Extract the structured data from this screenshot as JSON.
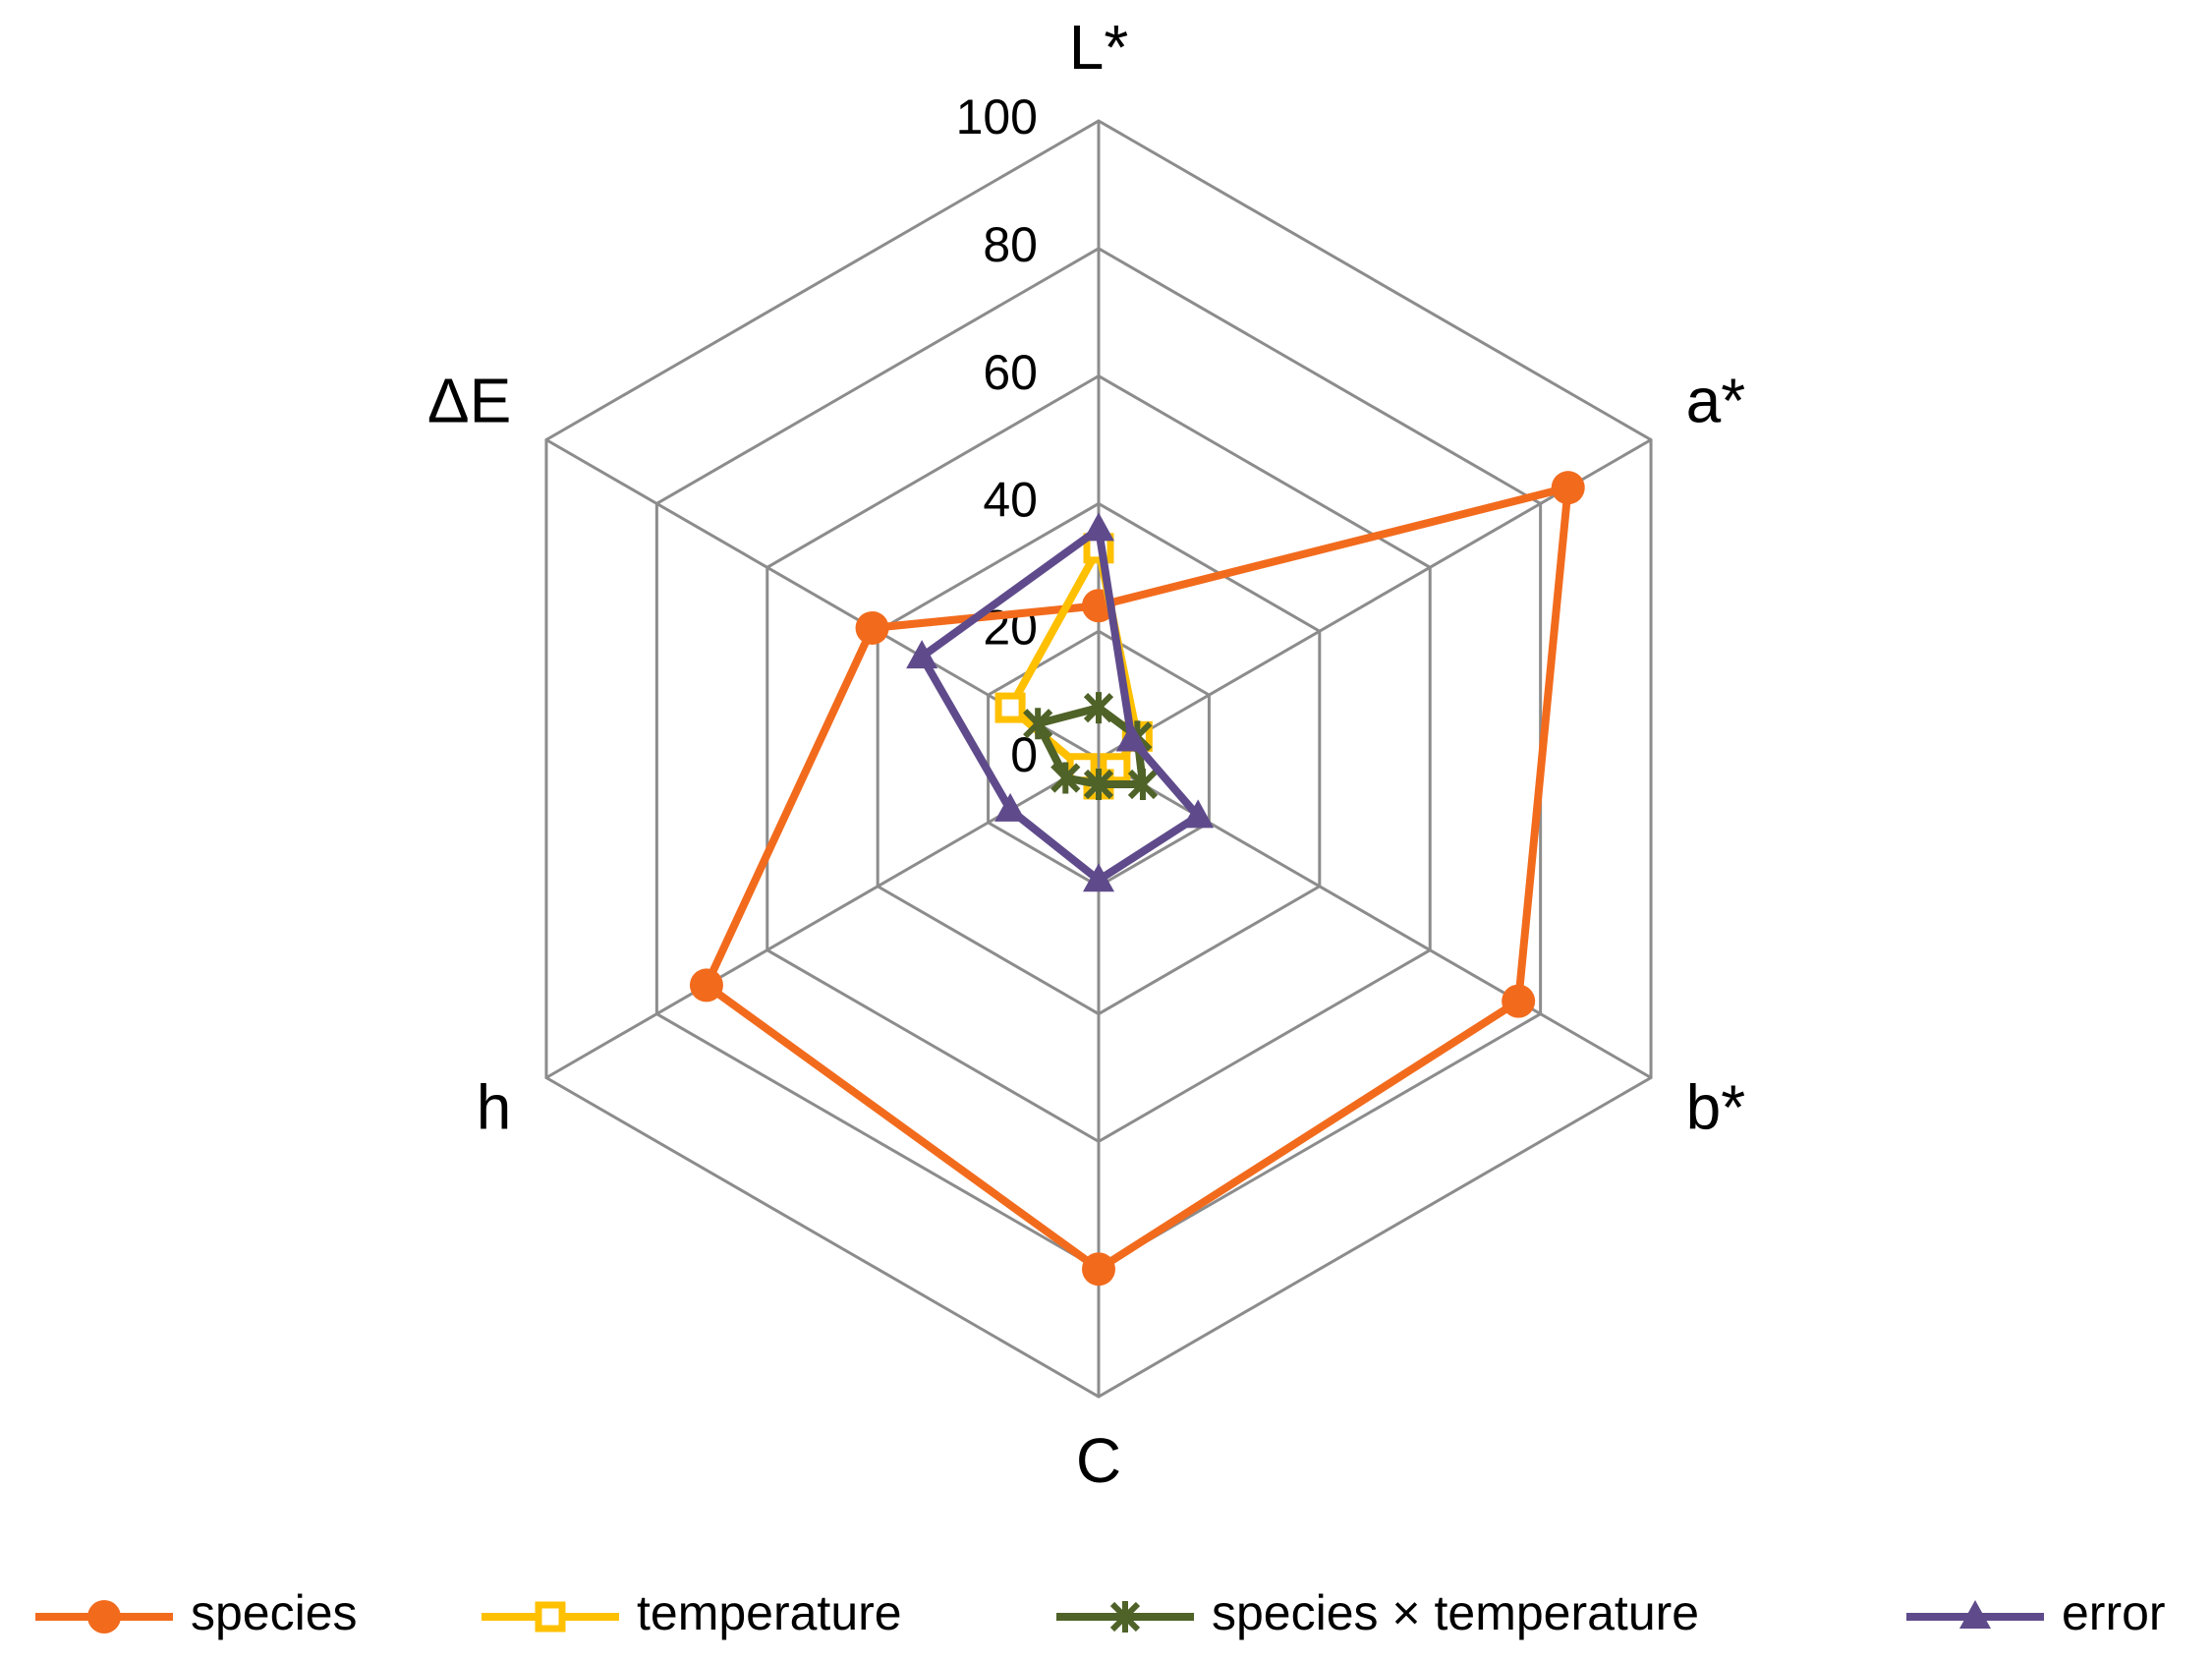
{
  "chart_data": {
    "type": "radar",
    "categories": [
      "L*",
      "a*",
      "b*",
      "C",
      "h",
      "ΔE"
    ],
    "rlim": [
      0,
      100
    ],
    "rticks": [
      0,
      20,
      40,
      60,
      80,
      100
    ],
    "series": [
      {
        "name": "species",
        "color": "#f26b1d",
        "marker": "circle",
        "values": [
          24,
          85,
          76,
          80,
          71,
          41
        ]
      },
      {
        "name": "temperature",
        "color": "#ffc000",
        "marker": "square",
        "values": [
          33,
          7,
          3,
          4,
          3,
          16
        ]
      },
      {
        "name": "species × temperature",
        "color": "#4f6228",
        "marker": "star",
        "values": [
          8,
          7,
          8,
          4,
          6,
          11
        ]
      },
      {
        "name": "error",
        "color": "#5f4b8b",
        "marker": "triangle",
        "values": [
          36,
          6,
          18,
          19,
          16,
          32
        ]
      }
    ],
    "legend": "bottom"
  }
}
